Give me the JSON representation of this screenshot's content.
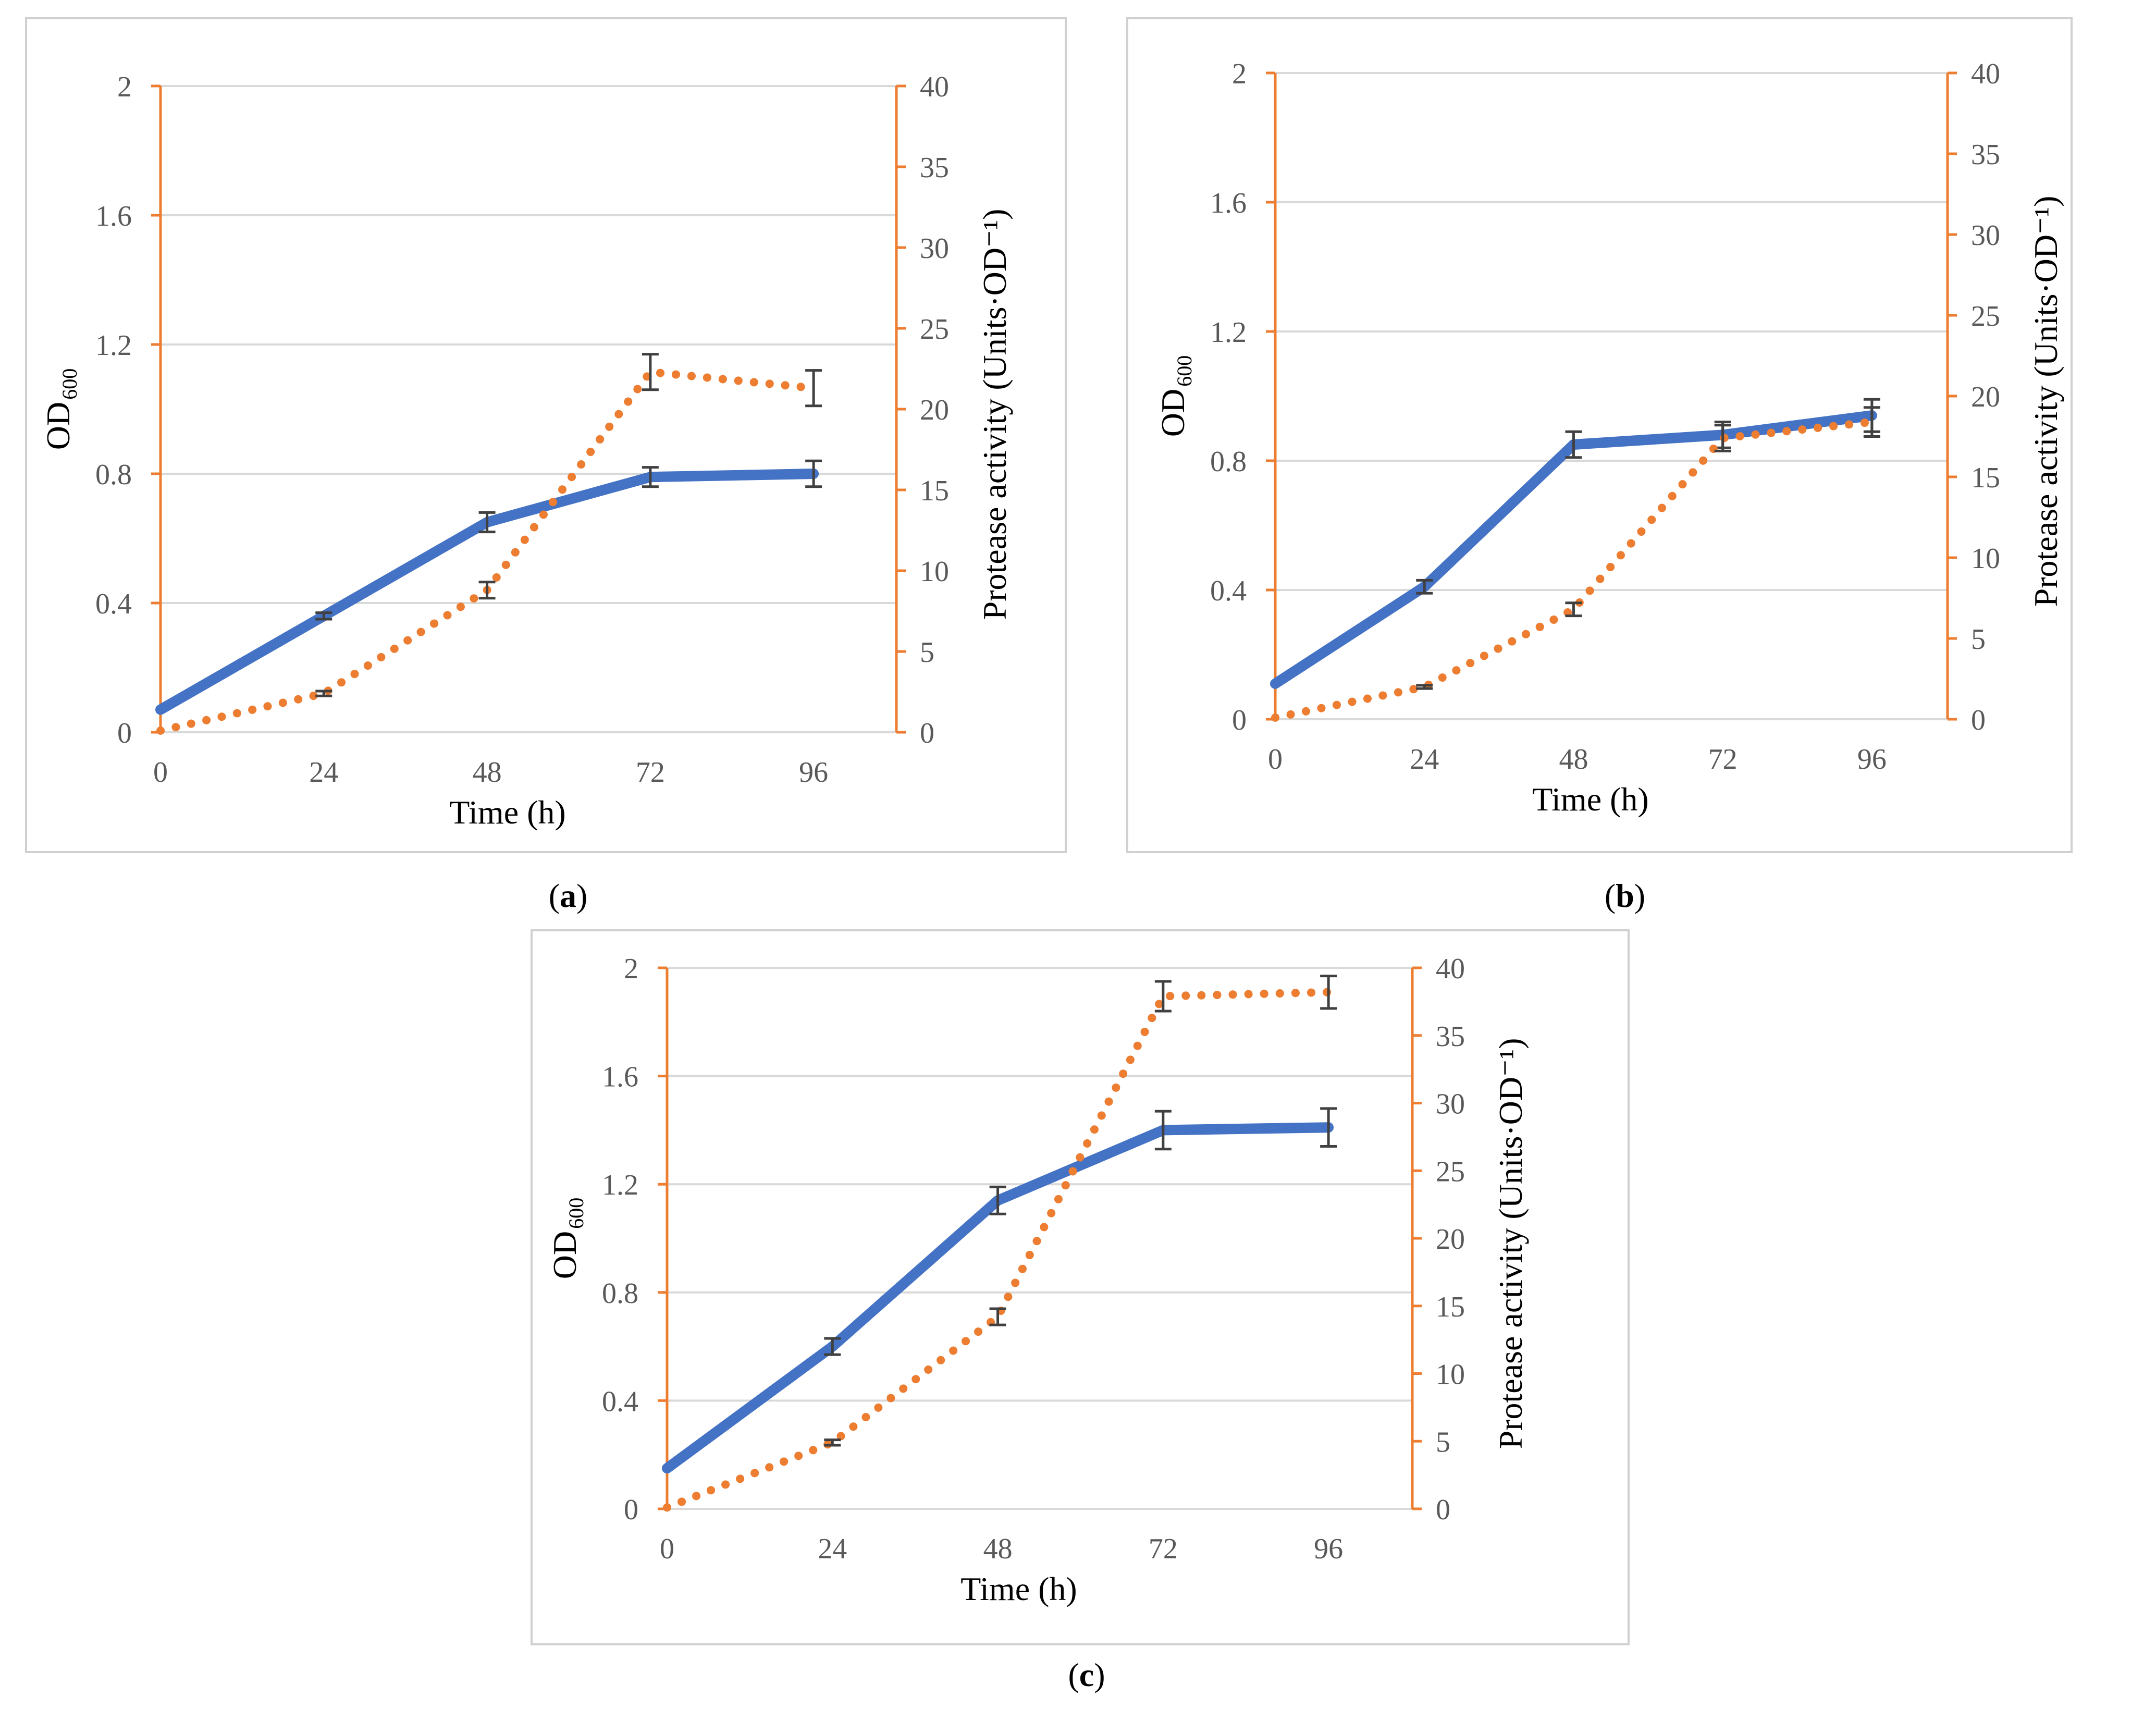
{
  "colors": {
    "od_line": "#4472c4",
    "protease_line": "#ed7d31",
    "secondary_axis": "#ed7d31",
    "grid": "#d9d9d9",
    "error_bar": "#404040"
  },
  "chart_data": [
    {
      "type": "line",
      "panel_label": {
        "open": "(",
        "letter": "a",
        "close": ")"
      },
      "x": [
        0,
        24,
        48,
        72,
        96
      ],
      "xlabel": "Time (h)",
      "ylabel": {
        "main": "OD",
        "sub": "600"
      },
      "y2label": "Protease activity (Units·OD⁻¹)",
      "x_ticks": [
        "0",
        "24",
        "48",
        "72",
        "96"
      ],
      "ylim": [
        0,
        2
      ],
      "y_ticks": [
        "0",
        "0.4",
        "0.8",
        "1.2",
        "1.6",
        "2"
      ],
      "y2lim": [
        0,
        40
      ],
      "y2_ticks": [
        "0",
        "5",
        "10",
        "15",
        "20",
        "25",
        "30",
        "35",
        "40"
      ],
      "grid": true,
      "series": [
        {
          "axis": "left",
          "style": "solid",
          "values": [
            0.07,
            0.36,
            0.65,
            0.79,
            0.8
          ],
          "errors": [
            0,
            0.01,
            0.03,
            0.03,
            0.04
          ]
        },
        {
          "axis": "right",
          "style": "dotted",
          "values": [
            0.1,
            2.4,
            8.8,
            22.3,
            21.3
          ],
          "errors": [
            0,
            0.15,
            0.5,
            1.1,
            1.1
          ]
        }
      ]
    },
    {
      "type": "line",
      "panel_label": {
        "open": "(",
        "letter": "b",
        "close": ")"
      },
      "x": [
        0,
        24,
        48,
        72,
        96
      ],
      "xlabel": "Time (h)",
      "ylabel": {
        "main": "OD",
        "sub": "600"
      },
      "y2label": "Protease activity (Units·OD⁻¹)",
      "x_ticks": [
        "0",
        "24",
        "48",
        "72",
        "96"
      ],
      "ylim": [
        0,
        2
      ],
      "y_ticks": [
        "0",
        "0.4",
        "0.8",
        "1.2",
        "1.6",
        "2"
      ],
      "y2lim": [
        0,
        40
      ],
      "y2_ticks": [
        "0",
        "5",
        "10",
        "15",
        "20",
        "25",
        "30",
        "35",
        "40"
      ],
      "grid": true,
      "series": [
        {
          "axis": "left",
          "style": "solid",
          "values": [
            0.11,
            0.41,
            0.85,
            0.88,
            0.94
          ],
          "errors": [
            0,
            0.02,
            0.04,
            0.04,
            0.05
          ]
        },
        {
          "axis": "right",
          "style": "dotted",
          "values": [
            0.1,
            2.0,
            6.8,
            17.4,
            18.4
          ],
          "errors": [
            0,
            0.1,
            0.4,
            0.8,
            0.9
          ]
        }
      ]
    },
    {
      "type": "line",
      "panel_label": {
        "open": "(",
        "letter": "c",
        "close": ")"
      },
      "x": [
        0,
        24,
        48,
        72,
        96
      ],
      "xlabel": "Time (h)",
      "ylabel": {
        "main": "OD",
        "sub": "600"
      },
      "y2label": "Protease activity (Units·OD⁻¹)",
      "x_ticks": [
        "0",
        "24",
        "48",
        "72",
        "96"
      ],
      "ylim": [
        0,
        2
      ],
      "y_ticks": [
        "0",
        "0.4",
        "0.8",
        "1.2",
        "1.6",
        "2"
      ],
      "y2lim": [
        0,
        40
      ],
      "y2_ticks": [
        "0",
        "5",
        "10",
        "15",
        "20",
        "25",
        "30",
        "35",
        "40"
      ],
      "grid": true,
      "series": [
        {
          "axis": "left",
          "style": "solid",
          "values": [
            0.15,
            0.6,
            1.14,
            1.4,
            1.41
          ],
          "errors": [
            0,
            0.03,
            0.05,
            0.07,
            0.07
          ]
        },
        {
          "axis": "right",
          "style": "dotted",
          "values": [
            0.1,
            4.9,
            14.2,
            37.9,
            38.2
          ],
          "errors": [
            0,
            0.2,
            0.6,
            1.1,
            1.2
          ]
        }
      ]
    }
  ]
}
